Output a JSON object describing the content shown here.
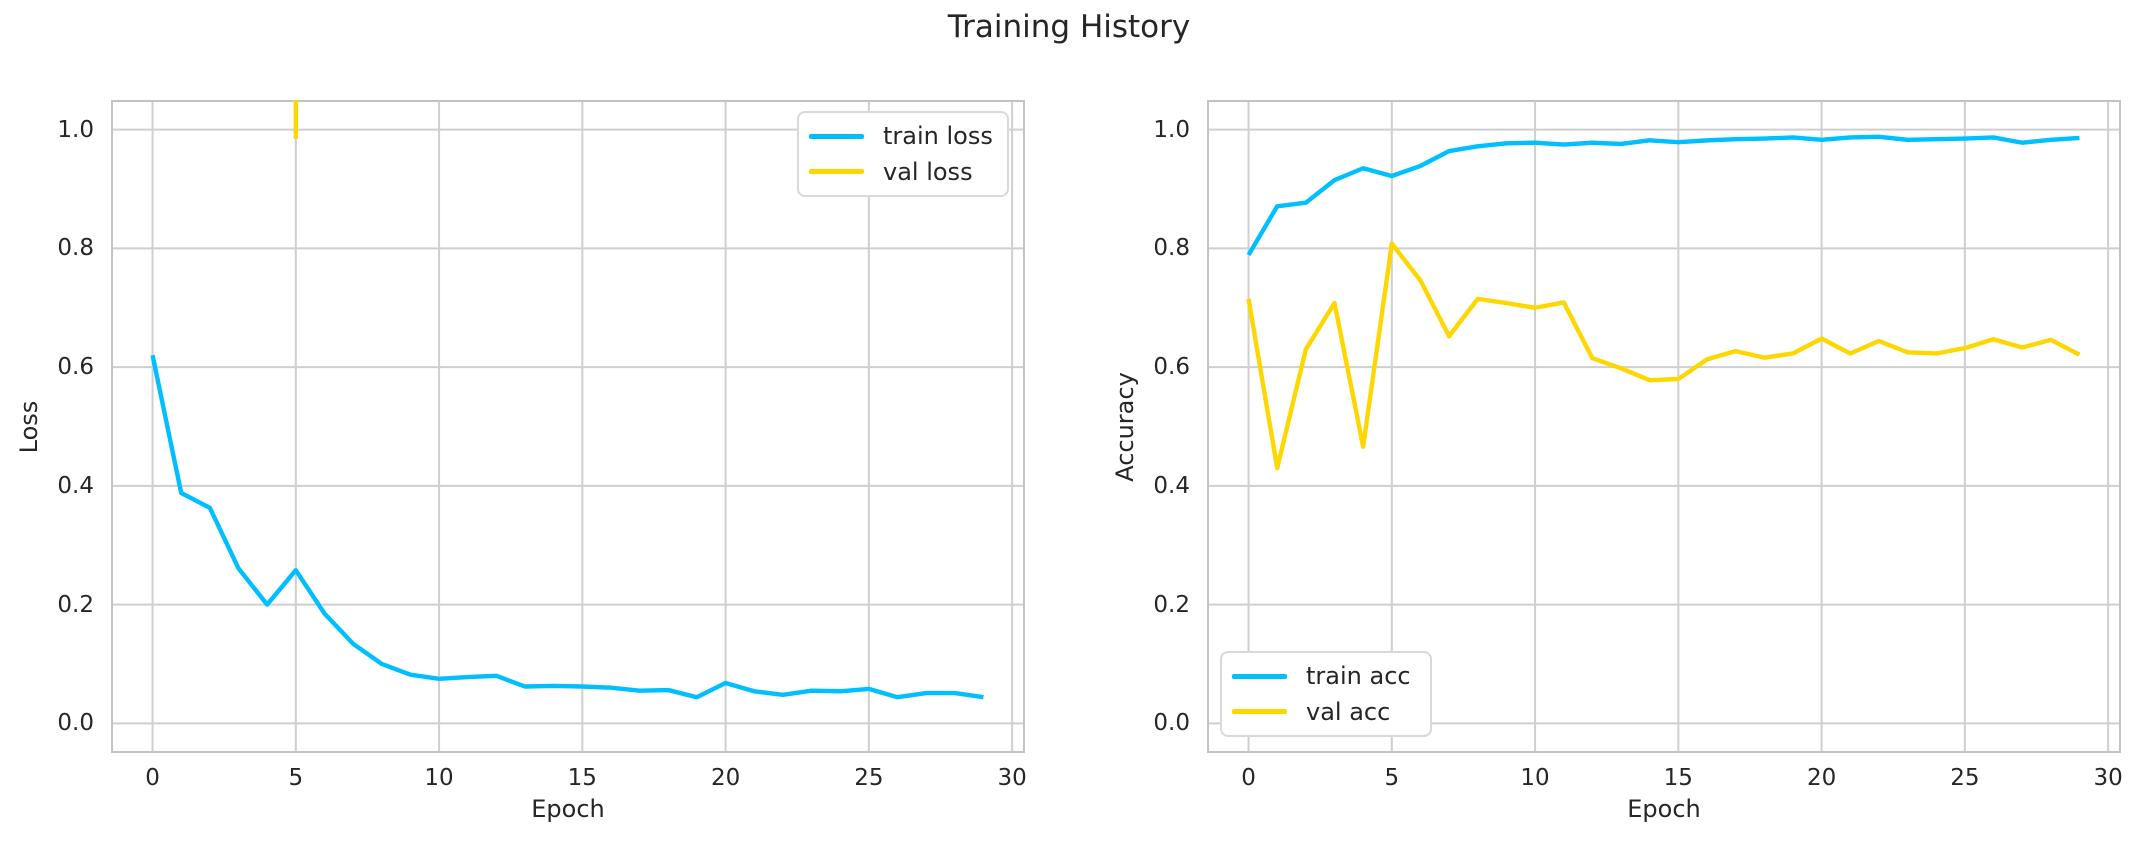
{
  "figure": {
    "title": "Training History",
    "background_color": "#ffffff",
    "text_color": "#262626",
    "grid_color": "#cfcfcf",
    "spine_color": "#c3c3c3"
  },
  "chart_data": [
    {
      "type": "line",
      "title": "",
      "xlabel": "Epoch",
      "ylabel": "Loss",
      "grid": true,
      "legend_position": "upper-right",
      "xlim": [
        -1.45,
        30.45
      ],
      "ylim": [
        -0.05,
        1.05
      ],
      "xticks": [
        0,
        5,
        10,
        15,
        20,
        25,
        30
      ],
      "xtick_labels": [
        "0",
        "5",
        "10",
        "15",
        "20",
        "25",
        "30"
      ],
      "yticks": [
        0,
        0.2,
        0.4,
        0.6,
        0.8,
        1.0
      ],
      "ytick_labels": [
        "0.0",
        "0.2",
        "0.4",
        "0.6",
        "0.8",
        "1.0"
      ],
      "x": [
        0,
        1,
        2,
        3,
        4,
        5,
        6,
        7,
        8,
        9,
        10,
        11,
        12,
        13,
        14,
        15,
        16,
        17,
        18,
        19,
        20,
        21,
        22,
        23,
        24,
        25,
        26,
        27,
        28,
        29
      ],
      "series": [
        {
          "name": "train loss",
          "color": "#00bfff",
          "values": [
            0.62,
            0.388,
            0.363,
            0.261,
            0.2,
            0.258,
            0.185,
            0.134,
            0.1,
            0.082,
            0.075,
            0.078,
            0.08,
            0.062,
            0.063,
            0.062,
            0.06,
            0.055,
            0.056,
            0.044,
            0.068,
            0.054,
            0.048,
            0.055,
            0.054,
            0.058,
            0.044,
            0.051,
            0.051,
            0.044
          ]
        },
        {
          "name": "val loss",
          "color": "#ffd700",
          "clipped_above_ylim": true,
          "visible_point": {
            "epoch": 5,
            "value": 0.985
          },
          "note": "val loss exceeds the y-axis limit (1.05) at every epoch except a dip to ~0.985 at epoch 5; only a vertical clipped spike at x=5 is visible"
        }
      ]
    },
    {
      "type": "line",
      "title": "",
      "xlabel": "Epoch",
      "ylabel": "Accuracy",
      "grid": true,
      "legend_position": "lower-left",
      "xlim": [
        -1.45,
        30.45
      ],
      "ylim": [
        -0.05,
        1.05
      ],
      "xticks": [
        0,
        5,
        10,
        15,
        20,
        25,
        30
      ],
      "xtick_labels": [
        "0",
        "5",
        "10",
        "15",
        "20",
        "25",
        "30"
      ],
      "yticks": [
        0,
        0.2,
        0.4,
        0.6,
        0.8,
        1.0
      ],
      "ytick_labels": [
        "0.0",
        "0.2",
        "0.4",
        "0.6",
        "0.8",
        "1.0"
      ],
      "x": [
        0,
        1,
        2,
        3,
        4,
        5,
        6,
        7,
        8,
        9,
        10,
        11,
        12,
        13,
        14,
        15,
        16,
        17,
        18,
        19,
        20,
        21,
        22,
        23,
        24,
        25,
        26,
        27,
        28,
        29
      ],
      "series": [
        {
          "name": "train acc",
          "color": "#00bfff",
          "values": [
            0.789,
            0.871,
            0.877,
            0.915,
            0.935,
            0.922,
            0.939,
            0.964,
            0.972,
            0.977,
            0.978,
            0.975,
            0.978,
            0.976,
            0.982,
            0.979,
            0.982,
            0.984,
            0.985,
            0.987,
            0.983,
            0.987,
            0.988,
            0.983,
            0.984,
            0.985,
            0.987,
            0.978,
            0.983,
            0.986
          ]
        },
        {
          "name": "val acc",
          "color": "#ffd700",
          "values": [
            0.715,
            0.43,
            0.63,
            0.708,
            0.466,
            0.808,
            0.746,
            0.652,
            0.715,
            0.708,
            0.7,
            0.709,
            0.615,
            0.598,
            0.578,
            0.58,
            0.613,
            0.627,
            0.616,
            0.623,
            0.648,
            0.623,
            0.644,
            0.625,
            0.623,
            0.632,
            0.647,
            0.633,
            0.646,
            0.621
          ]
        }
      ]
    }
  ]
}
